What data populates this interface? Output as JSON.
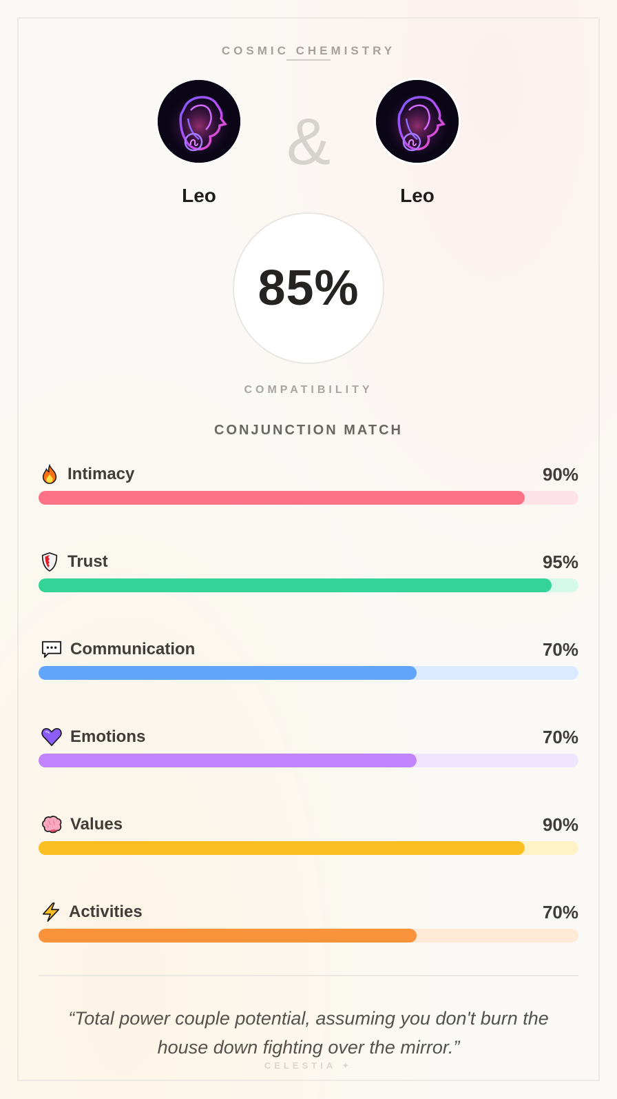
{
  "header": {
    "eyebrow": "COSMIC CHEMISTRY",
    "ampersand": "&"
  },
  "pair": {
    "left": {
      "sign": "Leo",
      "avatar_icon": "leo-lion-icon"
    },
    "right": {
      "sign": "Leo",
      "avatar_icon": "leo-lion-icon"
    }
  },
  "score": {
    "value": "85%",
    "label": "COMPATIBILITY"
  },
  "section": {
    "title": "CONJUNCTION MATCH"
  },
  "metrics": [
    {
      "label": "Intimacy",
      "value": "90%",
      "percent": 90,
      "icon": "fire-icon",
      "color": "#fb7185",
      "track": "#fde2e7"
    },
    {
      "label": "Trust",
      "value": "95%",
      "percent": 95,
      "icon": "shield-icon",
      "color": "#34d399",
      "track": "#d5f8ea"
    },
    {
      "label": "Communication",
      "value": "70%",
      "percent": 70,
      "icon": "speech-bubble-icon",
      "color": "#60a5fa",
      "track": "#dbeafe"
    },
    {
      "label": "Emotions",
      "value": "70%",
      "percent": 70,
      "icon": "heart-icon",
      "color": "#c084fc",
      "track": "#f1e4fe"
    },
    {
      "label": "Values",
      "value": "90%",
      "percent": 90,
      "icon": "brain-icon",
      "color": "#fbbf24",
      "track": "#fef3c7"
    },
    {
      "label": "Activities",
      "value": "70%",
      "percent": 70,
      "icon": "lightning-icon",
      "color": "#fb923c",
      "track": "#feead6"
    }
  ],
  "quote": "“Total power couple potential, assuming you don't burn the house down fighting over the mirror.”",
  "brand": "CELESTIA ✦"
}
